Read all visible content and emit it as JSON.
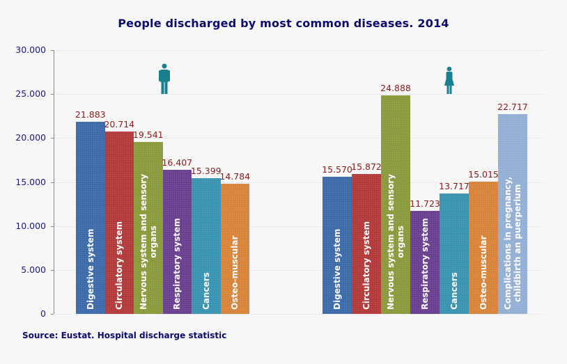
{
  "chart_data": {
    "type": "bar",
    "title": "People discharged by most common diseases. 2014",
    "source": "Source: Eustat. Hospital discharge statistic",
    "xlabel": "",
    "ylabel": "",
    "ylim": [
      0,
      30000
    ],
    "yticks": [
      "0",
      "5.000",
      "10.000",
      "15.000",
      "20.000",
      "25.000",
      "30.000"
    ],
    "grid": true,
    "legend": "none (icons indicate sex)",
    "groups": [
      {
        "name": "Men",
        "icon": "male-figure-icon",
        "categories": [
          "Digestive system",
          "Circulatory system",
          "Nervous system and sensory organs",
          "Respiratory system",
          "Cancers",
          "Osteo-muscular"
        ],
        "values": [
          21883,
          20714,
          19541,
          16407,
          15399,
          14784
        ],
        "labels": [
          "21.883",
          "20.714",
          "19.541",
          "16.407",
          "15.399",
          "14.784"
        ]
      },
      {
        "name": "Women",
        "icon": "female-figure-icon",
        "categories": [
          "Digestive system",
          "Circulatory system",
          "Nervous system and sensory organs",
          "Respiratory system",
          "Cancers",
          "Osteo-muscular",
          "Complications in pregnancy, childbirth an puerperium"
        ],
        "values": [
          15570,
          15872,
          24888,
          11723,
          13717,
          15015,
          22717
        ],
        "labels": [
          "15.570",
          "15.872",
          "24.888",
          "11.723",
          "13.717",
          "15.015",
          "22.717"
        ]
      }
    ]
  },
  "colors": {
    "Digestive system": "#3d6aa8",
    "Circulatory system": "#b33a3a",
    "Nervous system and sensory organs": "#8a9a3c",
    "Respiratory system": "#6a3f8f",
    "Cancers": "#3a93b0",
    "Osteo-muscular": "#d8843a",
    "Complications in pregnancy, childbirth an puerperium": "#93b0d4",
    "title": "#0b0b6b",
    "value_label": "#8b1a1a",
    "icon": "#1a7f8e"
  }
}
